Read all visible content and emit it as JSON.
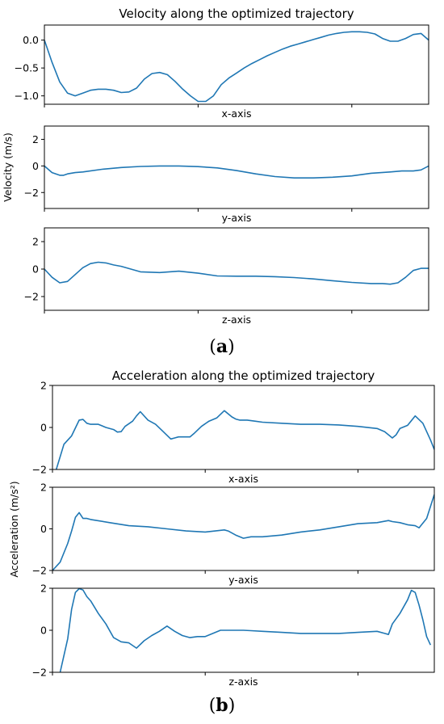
{
  "figure": {
    "panel_a_label": "a",
    "panel_b_label": "b"
  },
  "chart_data": [
    {
      "type": "line",
      "title": "Velocity along the optimized trajectory",
      "ylabel": "Velocity (m/s)",
      "color": "#1f77b4",
      "subplots": [
        {
          "xlabel": "x-axis",
          "yticks": [
            0.0,
            -0.5,
            -1.0
          ],
          "ytick_labels": [
            "0.0",
            "−0.5",
            "−1.0"
          ],
          "ylim": [
            -1.15,
            0.27
          ],
          "xlim": [
            0,
            100
          ],
          "series": [
            {
              "x": [
                0,
                2,
                4,
                6,
                8,
                10,
                12,
                14,
                16,
                18,
                20,
                22,
                24,
                26,
                28,
                30,
                32,
                34,
                36,
                38,
                40,
                42,
                44,
                46,
                48,
                50,
                52,
                54,
                56,
                58,
                60,
                62,
                64,
                66,
                68,
                70,
                72,
                74,
                76,
                78,
                80,
                82,
                84,
                86,
                88,
                90,
                92,
                94,
                96,
                98,
                100
              ],
              "y": [
                0.0,
                -0.4,
                -0.75,
                -0.95,
                -1.0,
                -0.95,
                -0.9,
                -0.88,
                -0.88,
                -0.9,
                -0.94,
                -0.93,
                -0.86,
                -0.7,
                -0.6,
                -0.58,
                -0.62,
                -0.74,
                -0.88,
                -1.0,
                -1.1,
                -1.1,
                -1.0,
                -0.8,
                -0.68,
                -0.59,
                -0.5,
                -0.42,
                -0.35,
                -0.28,
                -0.22,
                -0.16,
                -0.11,
                -0.07,
                -0.03,
                0.01,
                0.05,
                0.09,
                0.12,
                0.14,
                0.15,
                0.15,
                0.14,
                0.11,
                0.03,
                -0.02,
                -0.02,
                0.03,
                0.1,
                0.12,
                0.0
              ]
            }
          ]
        },
        {
          "xlabel": "y-axis",
          "yticks": [
            2,
            0,
            -2
          ],
          "ytick_labels": [
            "2",
            "0",
            "−2"
          ],
          "ylim": [
            -3.2,
            3.0
          ],
          "xlim": [
            0,
            100
          ],
          "series": [
            {
              "x": [
                0,
                2,
                4,
                5,
                6,
                8,
                10,
                15,
                20,
                25,
                30,
                35,
                40,
                45,
                50,
                55,
                60,
                65,
                70,
                75,
                80,
                85,
                90,
                93,
                96,
                98,
                100
              ],
              "y": [
                0.0,
                -0.5,
                -0.7,
                -0.7,
                -0.6,
                -0.5,
                -0.45,
                -0.25,
                -0.12,
                -0.04,
                0.0,
                0.0,
                -0.05,
                -0.15,
                -0.35,
                -0.6,
                -0.8,
                -0.9,
                -0.9,
                -0.85,
                -0.75,
                -0.55,
                -0.45,
                -0.38,
                -0.38,
                -0.3,
                0.0
              ]
            }
          ]
        },
        {
          "xlabel": "z-axis",
          "yticks": [
            2,
            0,
            -2
          ],
          "ytick_labels": [
            "2",
            "0",
            "−2"
          ],
          "ylim": [
            -3.0,
            3.0
          ],
          "xlim": [
            0,
            100
          ],
          "series": [
            {
              "x": [
                0,
                2,
                4,
                6,
                8,
                10,
                12,
                14,
                16,
                18,
                20,
                25,
                30,
                35,
                40,
                45,
                50,
                55,
                60,
                65,
                70,
                75,
                80,
                85,
                88,
                90,
                92,
                94,
                96,
                98,
                100
              ],
              "y": [
                0.0,
                -0.6,
                -1.0,
                -0.9,
                -0.4,
                0.1,
                0.4,
                0.5,
                0.45,
                0.3,
                0.2,
                -0.2,
                -0.25,
                -0.15,
                -0.3,
                -0.5,
                -0.52,
                -0.52,
                -0.55,
                -0.62,
                -0.72,
                -0.85,
                -0.97,
                -1.05,
                -1.05,
                -1.1,
                -1.0,
                -0.6,
                -0.1,
                0.05,
                0.05
              ]
            }
          ]
        }
      ]
    },
    {
      "type": "line",
      "title": "Acceleration along the optimized trajectory",
      "ylabel": "Acceleration (m/s²)",
      "color": "#1f77b4",
      "subplots": [
        {
          "xlabel": "x-axis",
          "yticks": [
            2,
            0,
            -2
          ],
          "ytick_labels": [
            "2",
            "0",
            "−2"
          ],
          "ylim": [
            -2.0,
            2.0
          ],
          "xlim": [
            0,
            100
          ],
          "series": [
            {
              "x": [
                1,
                3,
                5,
                7,
                8,
                9,
                10,
                12,
                14,
                16,
                17,
                18,
                19,
                21,
                22,
                23,
                25,
                27,
                29,
                31,
                32,
                33,
                35,
                36,
                37,
                39,
                41,
                43,
                45,
                47,
                48,
                49,
                51,
                53,
                55,
                60,
                65,
                70,
                75,
                80,
                85,
                87,
                89,
                90,
                91,
                93,
                95,
                97,
                99,
                100
              ],
              "y": [
                -2.0,
                -0.8,
                -0.4,
                0.35,
                0.38,
                0.2,
                0.15,
                0.15,
                0.0,
                -0.1,
                -0.22,
                -0.2,
                0.05,
                0.3,
                0.55,
                0.75,
                0.35,
                0.15,
                -0.2,
                -0.55,
                -0.5,
                -0.45,
                -0.45,
                -0.45,
                -0.3,
                0.05,
                0.3,
                0.45,
                0.8,
                0.5,
                0.4,
                0.35,
                0.35,
                0.3,
                0.25,
                0.2,
                0.15,
                0.15,
                0.12,
                0.05,
                -0.05,
                -0.2,
                -0.5,
                -0.35,
                -0.05,
                0.1,
                0.55,
                0.2,
                -0.6,
                -1.05
              ]
            }
          ]
        },
        {
          "xlabel": "y-axis",
          "yticks": [
            2,
            0,
            -2
          ],
          "ytick_labels": [
            "2",
            "0",
            "−2"
          ],
          "ylim": [
            -2.0,
            2.0
          ],
          "xlim": [
            0,
            100
          ],
          "series": [
            {
              "x": [
                0,
                2,
                4,
                5,
                6,
                7,
                8,
                9,
                10,
                15,
                20,
                25,
                30,
                35,
                40,
                45,
                46,
                48,
                50,
                52,
                55,
                60,
                65,
                70,
                75,
                80,
                85,
                88,
                89,
                91,
                93,
                95,
                96,
                98,
                100
              ],
              "y": [
                -2.0,
                -1.6,
                -0.7,
                -0.1,
                0.55,
                0.78,
                0.5,
                0.5,
                0.45,
                0.3,
                0.15,
                0.1,
                0.0,
                -0.1,
                -0.15,
                -0.05,
                -0.1,
                -0.3,
                -0.45,
                -0.38,
                -0.38,
                -0.3,
                -0.15,
                -0.05,
                0.1,
                0.25,
                0.3,
                0.4,
                0.35,
                0.3,
                0.2,
                0.15,
                0.05,
                0.5,
                1.65
              ]
            }
          ]
        },
        {
          "xlabel": "z-axis",
          "yticks": [
            2,
            0,
            -2
          ],
          "ytick_labels": [
            "2",
            "0",
            "−2"
          ],
          "ylim": [
            -2.0,
            2.0
          ],
          "xlim": [
            0,
            100
          ],
          "series": [
            {
              "x": [
                2,
                4,
                5,
                6,
                7,
                8,
                9,
                10,
                12,
                14,
                16,
                18,
                20,
                22,
                24,
                26,
                28,
                30,
                32,
                34,
                36,
                38,
                40,
                42,
                44,
                46,
                48,
                50,
                52,
                55,
                60,
                65,
                70,
                75,
                80,
                85,
                87,
                88,
                89,
                91,
                93,
                94,
                95,
                96,
                97,
                98,
                99
              ],
              "y": [
                -2.0,
                -0.4,
                1.0,
                1.8,
                1.98,
                1.92,
                1.6,
                1.4,
                0.8,
                0.3,
                -0.35,
                -0.55,
                -0.6,
                -0.85,
                -0.5,
                -0.25,
                -0.05,
                0.2,
                -0.05,
                -0.25,
                -0.35,
                -0.3,
                -0.3,
                -0.15,
                0.0,
                0.0,
                0.0,
                0.0,
                -0.02,
                -0.05,
                -0.1,
                -0.15,
                -0.15,
                -0.15,
                -0.1,
                -0.05,
                -0.15,
                -0.2,
                0.3,
                0.8,
                1.45,
                1.9,
                1.8,
                1.2,
                0.5,
                -0.3,
                -0.7
              ]
            }
          ]
        }
      ]
    }
  ]
}
